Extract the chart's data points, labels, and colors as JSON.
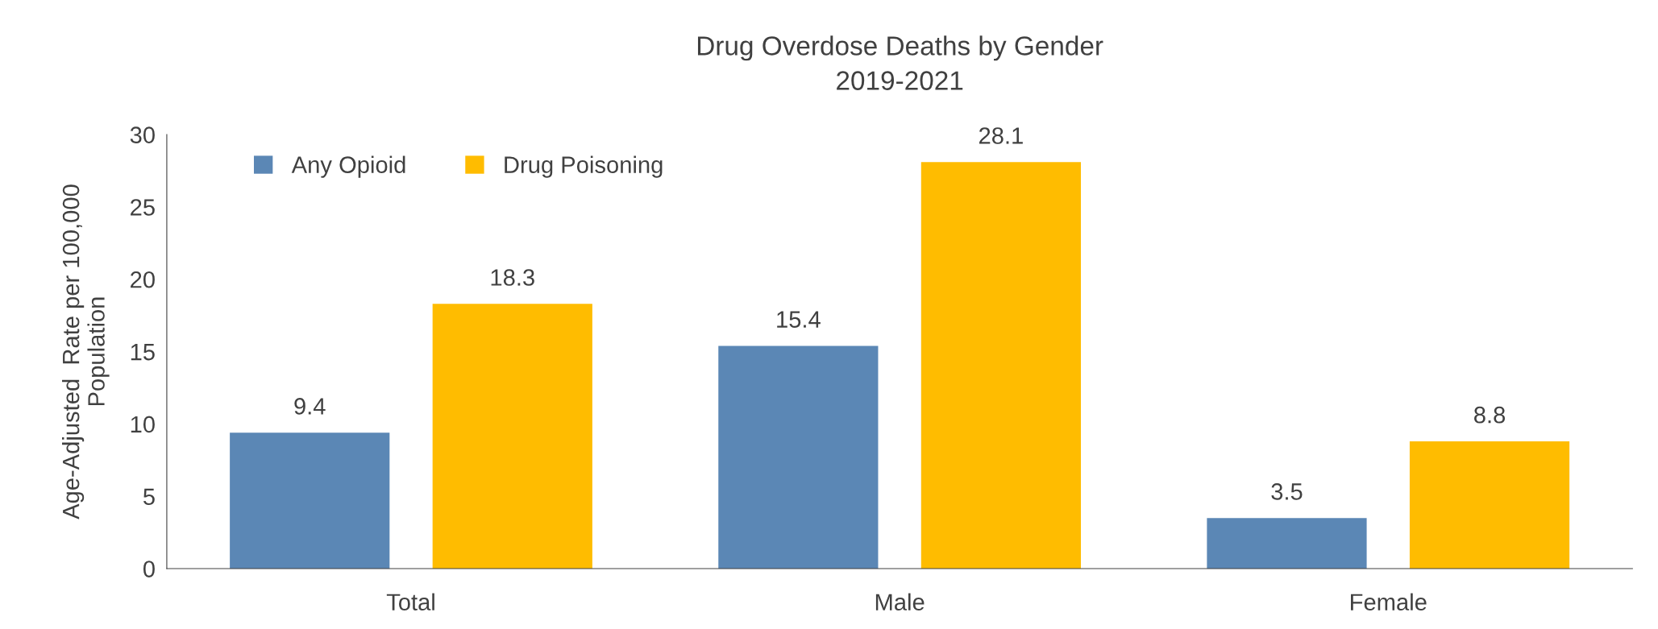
{
  "chart_data": {
    "type": "bar",
    "title": "Drug Overdose Deaths by Gender\n2019-2021",
    "ylabel": "Age-Adjusted  Rate per 100,000\nPopulation",
    "categories": [
      "Total",
      "Male",
      "Female"
    ],
    "series": [
      {
        "name": "Any Opioid",
        "color": "#5b87b5",
        "values": [
          9.4,
          15.4,
          3.5
        ]
      },
      {
        "name": "Drug Poisoning",
        "color": "#ffbc00",
        "values": [
          18.3,
          28.1,
          8.8
        ]
      }
    ],
    "ylim": [
      0,
      30
    ],
    "yticks": [
      0,
      5,
      10,
      15,
      20,
      25,
      30
    ],
    "grid": false,
    "legend": "top left",
    "data_labels": true
  }
}
